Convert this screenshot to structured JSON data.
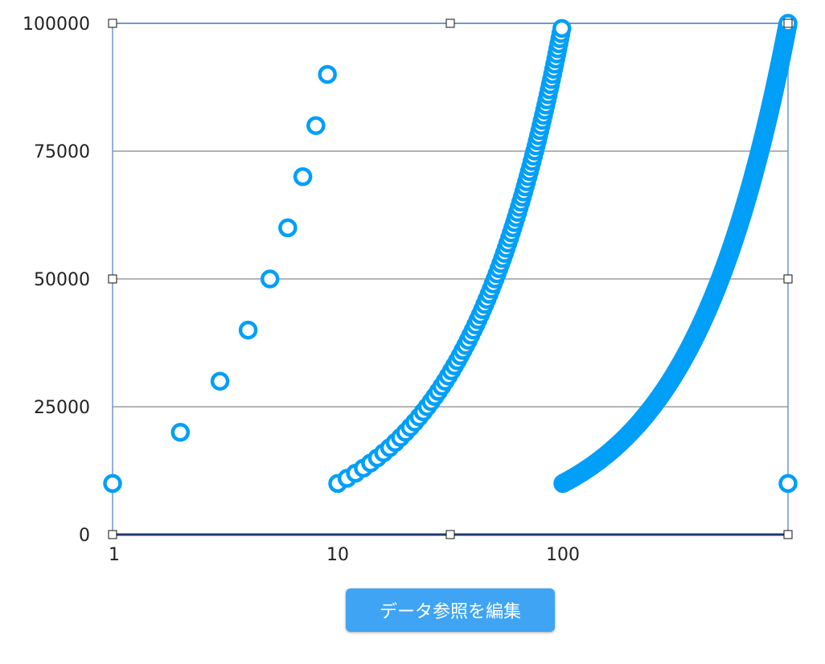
{
  "colors": {
    "marker": "#009ff8",
    "grid": "#b4b4b4",
    "frame": "#6f96d6",
    "x_axis_line": "#1c3a6b",
    "button": "#3fa4f3",
    "tick_text": "#222222"
  },
  "button": {
    "label": "データ参照を編集"
  },
  "chart_data": {
    "type": "scatter",
    "title": "",
    "xlabel": "",
    "ylabel": "",
    "x_scale": "log",
    "xlim": [
      1,
      1000
    ],
    "ylim": [
      0,
      100000
    ],
    "x_ticks": [
      1,
      10,
      100
    ],
    "x_tick_labels": [
      "1",
      "10",
      "100"
    ],
    "y_ticks": [
      0,
      25000,
      50000,
      75000,
      100000
    ],
    "y_tick_labels": [
      "0",
      "25000",
      "50000",
      "75000",
      "100000"
    ],
    "grid": true,
    "marker": "open-circle",
    "series": [
      {
        "x": [
          1,
          2,
          3,
          4,
          5,
          6,
          7,
          8,
          9
        ],
        "y": [
          10000,
          20000,
          30000,
          40000,
          50000,
          60000,
          70000,
          80000,
          90000
        ]
      },
      {
        "x": [
          10,
          11,
          12,
          13,
          14,
          15,
          16,
          17,
          18,
          19,
          20,
          21,
          22,
          23,
          24,
          25,
          26,
          27,
          28,
          29,
          30,
          31,
          32,
          33,
          34,
          35,
          36,
          37,
          38,
          39,
          40,
          41,
          42,
          43,
          44,
          45,
          46,
          47,
          48,
          49,
          50,
          51,
          52,
          53,
          54,
          55,
          56,
          57,
          58,
          59,
          60,
          61,
          62,
          63,
          64,
          65,
          66,
          67,
          68,
          69,
          70,
          71,
          72,
          73,
          74,
          75,
          76,
          77,
          78,
          79,
          80,
          81,
          82,
          83,
          84,
          85,
          86,
          87,
          88,
          89,
          90,
          91,
          92,
          93,
          94,
          95,
          96,
          97,
          98,
          99
        ],
        "y": [
          10000,
          11000,
          12000,
          13000,
          14000,
          15000,
          16000,
          17000,
          18000,
          19000,
          20000,
          21000,
          22000,
          23000,
          24000,
          25000,
          26000,
          27000,
          28000,
          29000,
          30000,
          31000,
          32000,
          33000,
          34000,
          35000,
          36000,
          37000,
          38000,
          39000,
          40000,
          41000,
          42000,
          43000,
          44000,
          45000,
          46000,
          47000,
          48000,
          49000,
          50000,
          51000,
          52000,
          53000,
          54000,
          55000,
          56000,
          57000,
          58000,
          59000,
          60000,
          61000,
          62000,
          63000,
          64000,
          65000,
          66000,
          67000,
          68000,
          69000,
          70000,
          71000,
          72000,
          73000,
          74000,
          75000,
          76000,
          77000,
          78000,
          79000,
          80000,
          81000,
          82000,
          83000,
          84000,
          85000,
          86000,
          87000,
          88000,
          89000,
          90000,
          91000,
          92000,
          93000,
          94000,
          95000,
          96000,
          97000,
          98000,
          99000
        ]
      },
      {
        "x_range": [
          100,
          999
        ],
        "step": 1,
        "y_equals_x_times": 100
      },
      {
        "x": [
          1000,
          1000
        ],
        "y": [
          10000,
          100000
        ]
      }
    ]
  }
}
